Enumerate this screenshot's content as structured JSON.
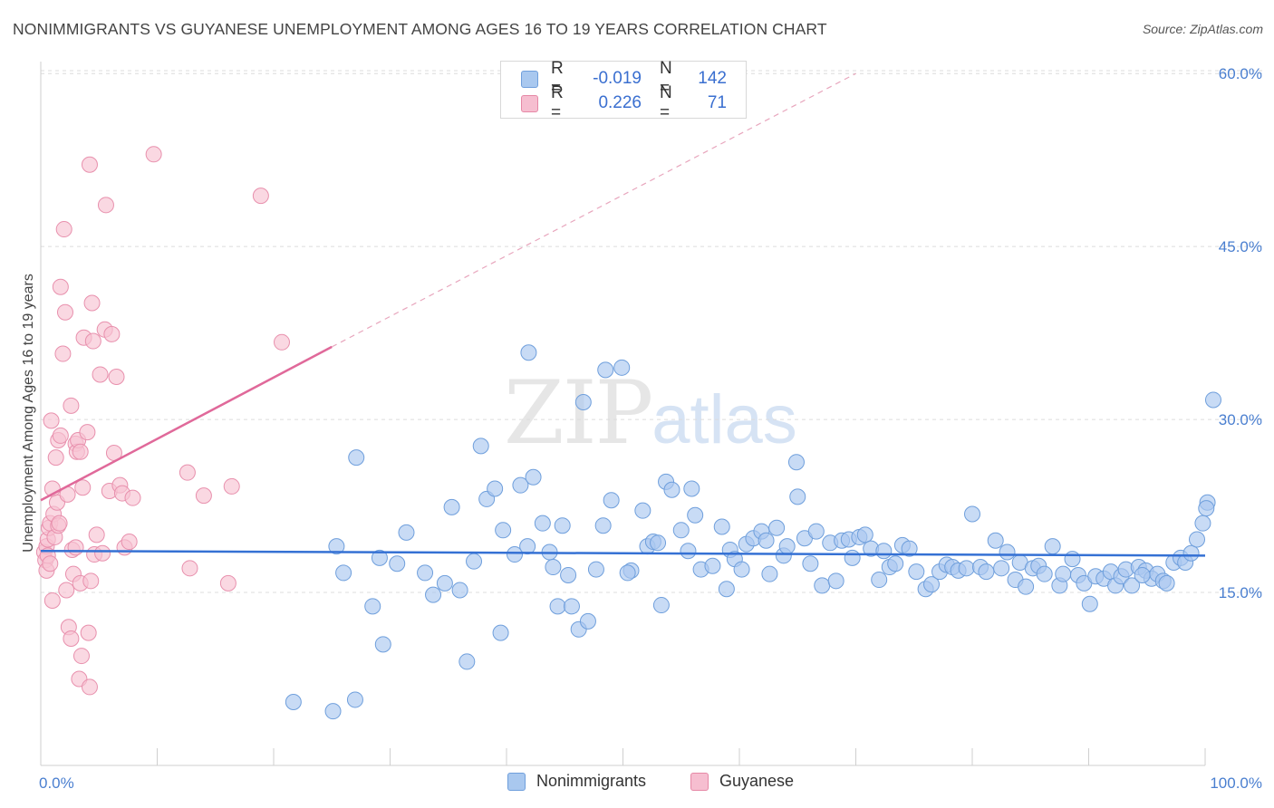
{
  "title": "NONIMMIGRANTS VS GUYANESE UNEMPLOYMENT AMONG AGES 16 TO 19 YEARS CORRELATION CHART",
  "source": "Source: ZipAtlas.com",
  "watermark": {
    "zip": "ZIP",
    "atlas": "atlas"
  },
  "legend": {
    "rows": [
      {
        "r_label": "R =",
        "r_value": "-0.019",
        "n_label": "N =",
        "n_value": "142",
        "color": "#a9c8ef",
        "border": "#6f9fdc"
      },
      {
        "r_label": "R =",
        "r_value": "0.226",
        "n_label": "N =",
        "n_value": "71",
        "color": "#f6bed0",
        "border": "#e688a6"
      }
    ]
  },
  "bottom_legend": {
    "a": "Nonimmigrants",
    "b": "Guyanese"
  },
  "colors": {
    "blue_fill": "#aac8ef",
    "blue_stroke": "#6f9fdc",
    "blue_line": "#3571d4",
    "pink_fill": "#f7c3d3",
    "pink_stroke": "#e890ad",
    "pink_line": "#e0699a"
  },
  "chart_data": {
    "type": "scatter",
    "ylabel": "Unemployment Among Ages 16 to 19 years",
    "xlim": [
      0,
      100
    ],
    "ylim": [
      0,
      60
    ],
    "x_tick_labels": [
      "0.0%",
      "100.0%"
    ],
    "y_tick_labels": [
      "15.0%",
      "30.0%",
      "45.0%",
      "60.0%"
    ],
    "y_ticks": [
      15,
      30,
      45,
      60
    ],
    "series": [
      {
        "name": "Nonimmigrants",
        "trend": {
          "x": [
            0,
            100
          ],
          "y": [
            18.6,
            18.2
          ]
        },
        "points": [
          [
            21.7,
            5.5
          ],
          [
            25.1,
            4.7
          ],
          [
            27.0,
            5.7
          ],
          [
            25.4,
            19.0
          ],
          [
            27.1,
            26.7
          ],
          [
            26.0,
            16.7
          ],
          [
            28.5,
            13.8
          ],
          [
            29.1,
            18.0
          ],
          [
            29.4,
            10.5
          ],
          [
            30.6,
            17.5
          ],
          [
            31.4,
            20.2
          ],
          [
            33.0,
            16.7
          ],
          [
            33.7,
            14.8
          ],
          [
            34.7,
            15.8
          ],
          [
            35.3,
            22.4
          ],
          [
            36.0,
            15.2
          ],
          [
            36.6,
            9.0
          ],
          [
            37.2,
            17.7
          ],
          [
            37.8,
            27.7
          ],
          [
            38.3,
            23.1
          ],
          [
            39.0,
            24.0
          ],
          [
            39.5,
            11.5
          ],
          [
            39.7,
            20.4
          ],
          [
            40.7,
            18.3
          ],
          [
            41.2,
            24.3
          ],
          [
            41.8,
            19.0
          ],
          [
            41.9,
            35.8
          ],
          [
            42.3,
            25.0
          ],
          [
            43.1,
            21.0
          ],
          [
            43.7,
            18.5
          ],
          [
            44.0,
            17.2
          ],
          [
            44.4,
            13.8
          ],
          [
            44.8,
            20.8
          ],
          [
            45.3,
            16.5
          ],
          [
            45.6,
            13.8
          ],
          [
            46.2,
            11.8
          ],
          [
            46.6,
            31.5
          ],
          [
            47.0,
            12.5
          ],
          [
            47.7,
            17.0
          ],
          [
            48.3,
            20.8
          ],
          [
            48.5,
            34.3
          ],
          [
            49.0,
            23.0
          ],
          [
            49.9,
            34.5
          ],
          [
            50.7,
            16.9
          ],
          [
            50.4,
            16.7
          ],
          [
            51.7,
            22.1
          ],
          [
            52.1,
            19.0
          ],
          [
            52.6,
            19.4
          ],
          [
            53.3,
            13.9
          ],
          [
            53.7,
            24.6
          ],
          [
            54.2,
            23.9
          ],
          [
            55.0,
            20.4
          ],
          [
            55.6,
            18.6
          ],
          [
            55.9,
            24.0
          ],
          [
            56.2,
            21.7
          ],
          [
            56.7,
            17.0
          ],
          [
            57.7,
            17.3
          ],
          [
            58.5,
            20.7
          ],
          [
            58.9,
            15.3
          ],
          [
            59.2,
            18.7
          ],
          [
            59.6,
            17.9
          ],
          [
            60.2,
            17.0
          ],
          [
            60.6,
            19.2
          ],
          [
            61.2,
            19.7
          ],
          [
            61.9,
            20.3
          ],
          [
            62.3,
            19.5
          ],
          [
            62.6,
            16.6
          ],
          [
            63.2,
            20.6
          ],
          [
            63.8,
            18.2
          ],
          [
            64.1,
            19.0
          ],
          [
            64.9,
            26.3
          ],
          [
            65.0,
            23.3
          ],
          [
            65.6,
            19.7
          ],
          [
            66.6,
            20.3
          ],
          [
            67.1,
            15.6
          ],
          [
            67.8,
            19.3
          ],
          [
            68.3,
            16.0
          ],
          [
            68.8,
            19.5
          ],
          [
            69.4,
            19.6
          ],
          [
            69.7,
            18.0
          ],
          [
            70.3,
            19.8
          ],
          [
            70.8,
            20.0
          ],
          [
            71.3,
            18.8
          ],
          [
            72.0,
            16.1
          ],
          [
            72.4,
            18.6
          ],
          [
            72.9,
            17.2
          ],
          [
            73.4,
            17.5
          ],
          [
            74.0,
            19.1
          ],
          [
            74.6,
            18.8
          ],
          [
            75.2,
            16.8
          ],
          [
            76.0,
            15.3
          ],
          [
            76.5,
            15.7
          ],
          [
            77.2,
            16.8
          ],
          [
            77.8,
            17.4
          ],
          [
            78.3,
            17.2
          ],
          [
            78.8,
            16.9
          ],
          [
            79.5,
            17.1
          ],
          [
            80.0,
            21.8
          ],
          [
            80.7,
            17.2
          ],
          [
            81.2,
            16.8
          ],
          [
            82.0,
            19.5
          ],
          [
            82.5,
            17.1
          ],
          [
            83.0,
            18.5
          ],
          [
            83.7,
            16.1
          ],
          [
            84.1,
            17.6
          ],
          [
            84.6,
            15.5
          ],
          [
            85.2,
            17.1
          ],
          [
            85.7,
            17.3
          ],
          [
            86.2,
            16.6
          ],
          [
            86.9,
            19.0
          ],
          [
            87.5,
            15.6
          ],
          [
            87.8,
            16.6
          ],
          [
            88.6,
            17.9
          ],
          [
            89.1,
            16.5
          ],
          [
            89.6,
            15.8
          ],
          [
            90.1,
            14.0
          ],
          [
            90.6,
            16.4
          ],
          [
            91.3,
            16.2
          ],
          [
            91.9,
            16.8
          ],
          [
            92.3,
            15.6
          ],
          [
            92.8,
            16.4
          ],
          [
            93.2,
            17.0
          ],
          [
            93.7,
            15.6
          ],
          [
            94.3,
            17.2
          ],
          [
            94.9,
            16.9
          ],
          [
            95.4,
            16.2
          ],
          [
            95.9,
            16.6
          ],
          [
            96.4,
            16.0
          ],
          [
            96.7,
            15.8
          ],
          [
            97.3,
            17.6
          ],
          [
            97.9,
            18.0
          ],
          [
            98.3,
            17.6
          ],
          [
            98.8,
            18.4
          ],
          [
            99.3,
            19.6
          ],
          [
            99.8,
            21.0
          ],
          [
            100.2,
            22.8
          ],
          [
            100.7,
            31.7
          ],
          [
            100.1,
            22.3
          ],
          [
            94.6,
            16.5
          ],
          [
            66.1,
            17.5
          ],
          [
            53.0,
            19.3
          ]
        ]
      },
      {
        "name": "Guyanese",
        "trend": {
          "x": [
            0,
            25
          ],
          "y": [
            23.0,
            36.3
          ]
        },
        "trend_extension": {
          "x": [
            25,
            70
          ],
          "y": [
            36.3,
            60.0
          ]
        },
        "points": [
          [
            0.3,
            18.5
          ],
          [
            0.4,
            17.8
          ],
          [
            0.5,
            19.0
          ],
          [
            0.5,
            16.9
          ],
          [
            0.6,
            19.6
          ],
          [
            0.6,
            18.2
          ],
          [
            0.7,
            20.6
          ],
          [
            0.8,
            17.5
          ],
          [
            0.8,
            21.0
          ],
          [
            0.9,
            29.9
          ],
          [
            1.0,
            24.0
          ],
          [
            1.1,
            21.8
          ],
          [
            1.2,
            19.8
          ],
          [
            1.3,
            26.7
          ],
          [
            1.4,
            22.8
          ],
          [
            1.5,
            28.2
          ],
          [
            1.5,
            20.8
          ],
          [
            1.6,
            21.0
          ],
          [
            1.7,
            28.6
          ],
          [
            1.7,
            41.5
          ],
          [
            1.9,
            35.7
          ],
          [
            2.0,
            46.5
          ],
          [
            2.1,
            39.3
          ],
          [
            2.2,
            15.2
          ],
          [
            2.3,
            23.5
          ],
          [
            2.4,
            12.0
          ],
          [
            2.6,
            31.2
          ],
          [
            2.6,
            11.0
          ],
          [
            2.7,
            18.7
          ],
          [
            2.8,
            16.6
          ],
          [
            3.0,
            27.9
          ],
          [
            3.1,
            27.2
          ],
          [
            3.2,
            28.2
          ],
          [
            3.3,
            7.5
          ],
          [
            3.4,
            15.8
          ],
          [
            3.4,
            27.2
          ],
          [
            3.5,
            9.5
          ],
          [
            3.6,
            24.1
          ],
          [
            3.7,
            37.1
          ],
          [
            4.0,
            28.9
          ],
          [
            4.1,
            11.5
          ],
          [
            4.2,
            52.1
          ],
          [
            4.2,
            6.8
          ],
          [
            4.3,
            16.0
          ],
          [
            4.4,
            40.1
          ],
          [
            4.5,
            36.8
          ],
          [
            4.6,
            18.3
          ],
          [
            4.8,
            20.0
          ],
          [
            5.1,
            33.9
          ],
          [
            5.3,
            18.4
          ],
          [
            5.5,
            37.8
          ],
          [
            5.6,
            48.6
          ],
          [
            5.9,
            23.8
          ],
          [
            6.1,
            37.4
          ],
          [
            6.3,
            27.1
          ],
          [
            6.5,
            33.7
          ],
          [
            6.8,
            24.3
          ],
          [
            7.0,
            23.6
          ],
          [
            7.2,
            18.9
          ],
          [
            7.6,
            19.4
          ],
          [
            7.9,
            23.2
          ],
          [
            9.7,
            53.0
          ],
          [
            12.6,
            25.4
          ],
          [
            12.8,
            17.1
          ],
          [
            14.0,
            23.4
          ],
          [
            16.1,
            15.8
          ],
          [
            16.4,
            24.2
          ],
          [
            18.9,
            49.4
          ],
          [
            20.7,
            36.7
          ],
          [
            1.0,
            14.3
          ],
          [
            3.0,
            18.9
          ]
        ]
      }
    ]
  }
}
